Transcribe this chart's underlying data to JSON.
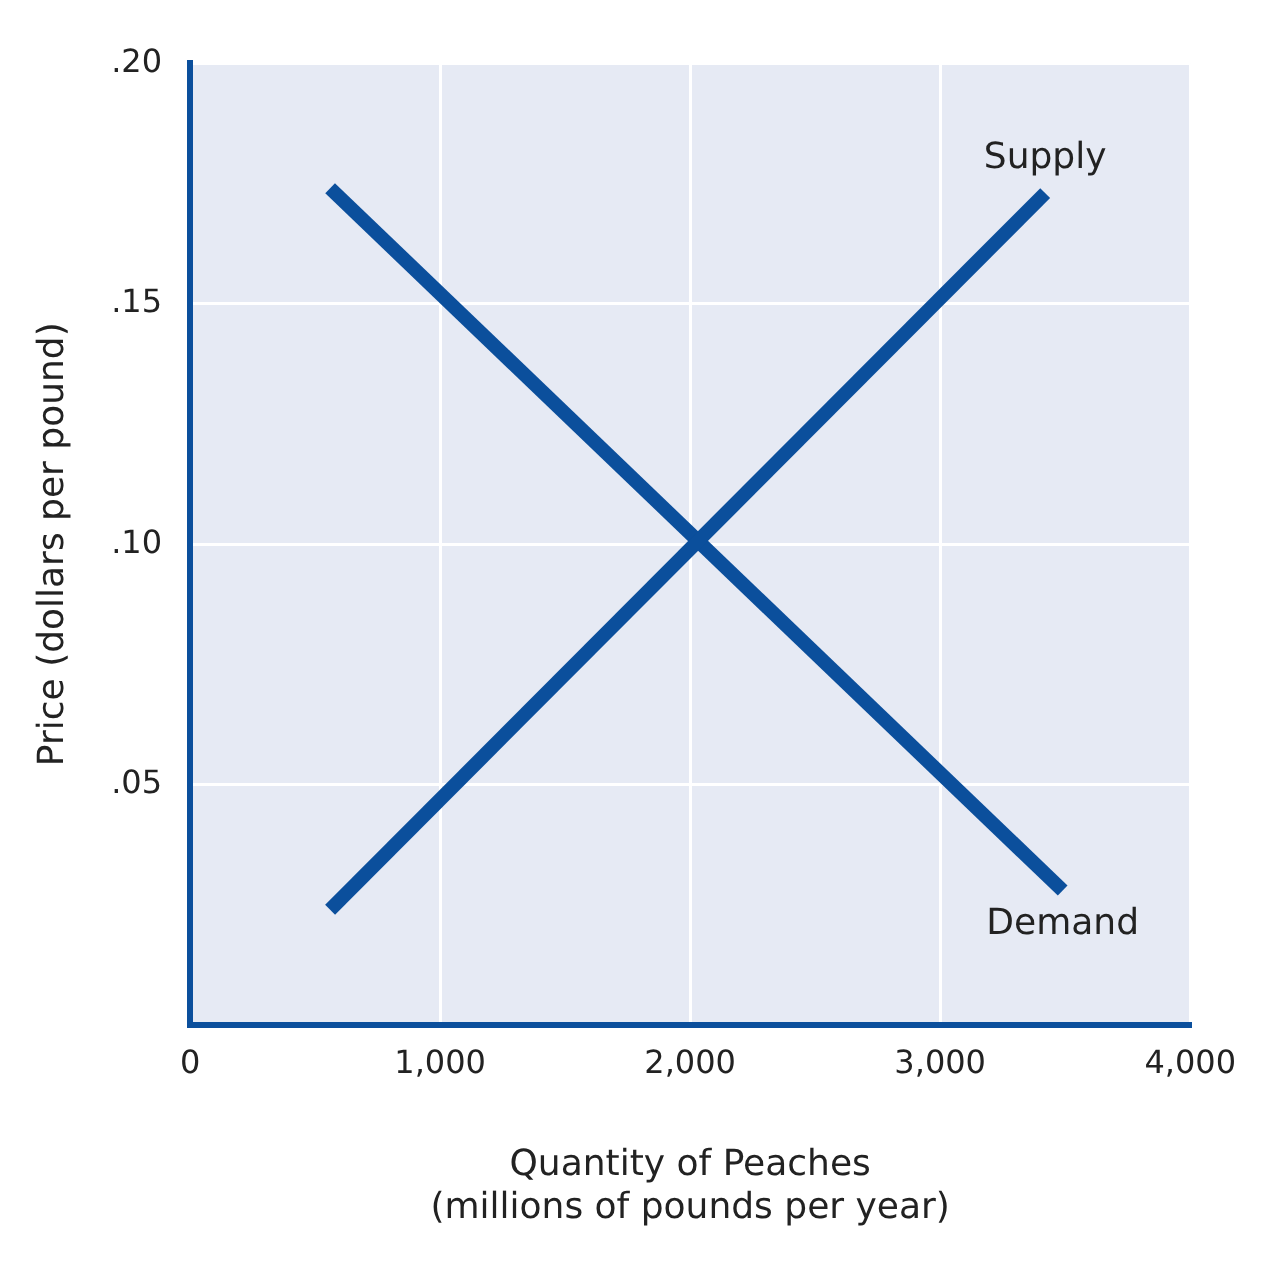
{
  "chart_data": {
    "type": "line",
    "xlabel": "Quantity of Peaches\n(millions of pounds per year)",
    "ylabel": "Price (dollars per pound)",
    "series": [
      {
        "name": "Supply",
        "color": "#0b4f9c",
        "x": [
          560,
          3420
        ],
        "values": [
          0.024,
          0.173
        ]
      },
      {
        "name": "Demand",
        "color": "#0b4f9c",
        "x": [
          560,
          3490
        ],
        "values": [
          0.174,
          0.028
        ]
      }
    ],
    "xlim": [
      0,
      4000
    ],
    "xticks": [
      0,
      {
        "value": 1000,
        "label": "1,000"
      },
      {
        "value": 2000,
        "label": "2,000"
      },
      {
        "value": 3000,
        "label": "3,000"
      },
      {
        "value": 4000,
        "label": "4,000"
      }
    ],
    "ylim": [
      0,
      0.2
    ],
    "yticks": [
      {
        "value": 0.05,
        "label": ".05"
      },
      {
        "value": 0.1,
        "label": ".10"
      },
      {
        "value": 0.15,
        "label": ".15"
      },
      {
        "value": 0.2,
        "label": ".20"
      }
    ],
    "grid": true,
    "legend": false,
    "marker": "none",
    "line_style": "solid"
  }
}
